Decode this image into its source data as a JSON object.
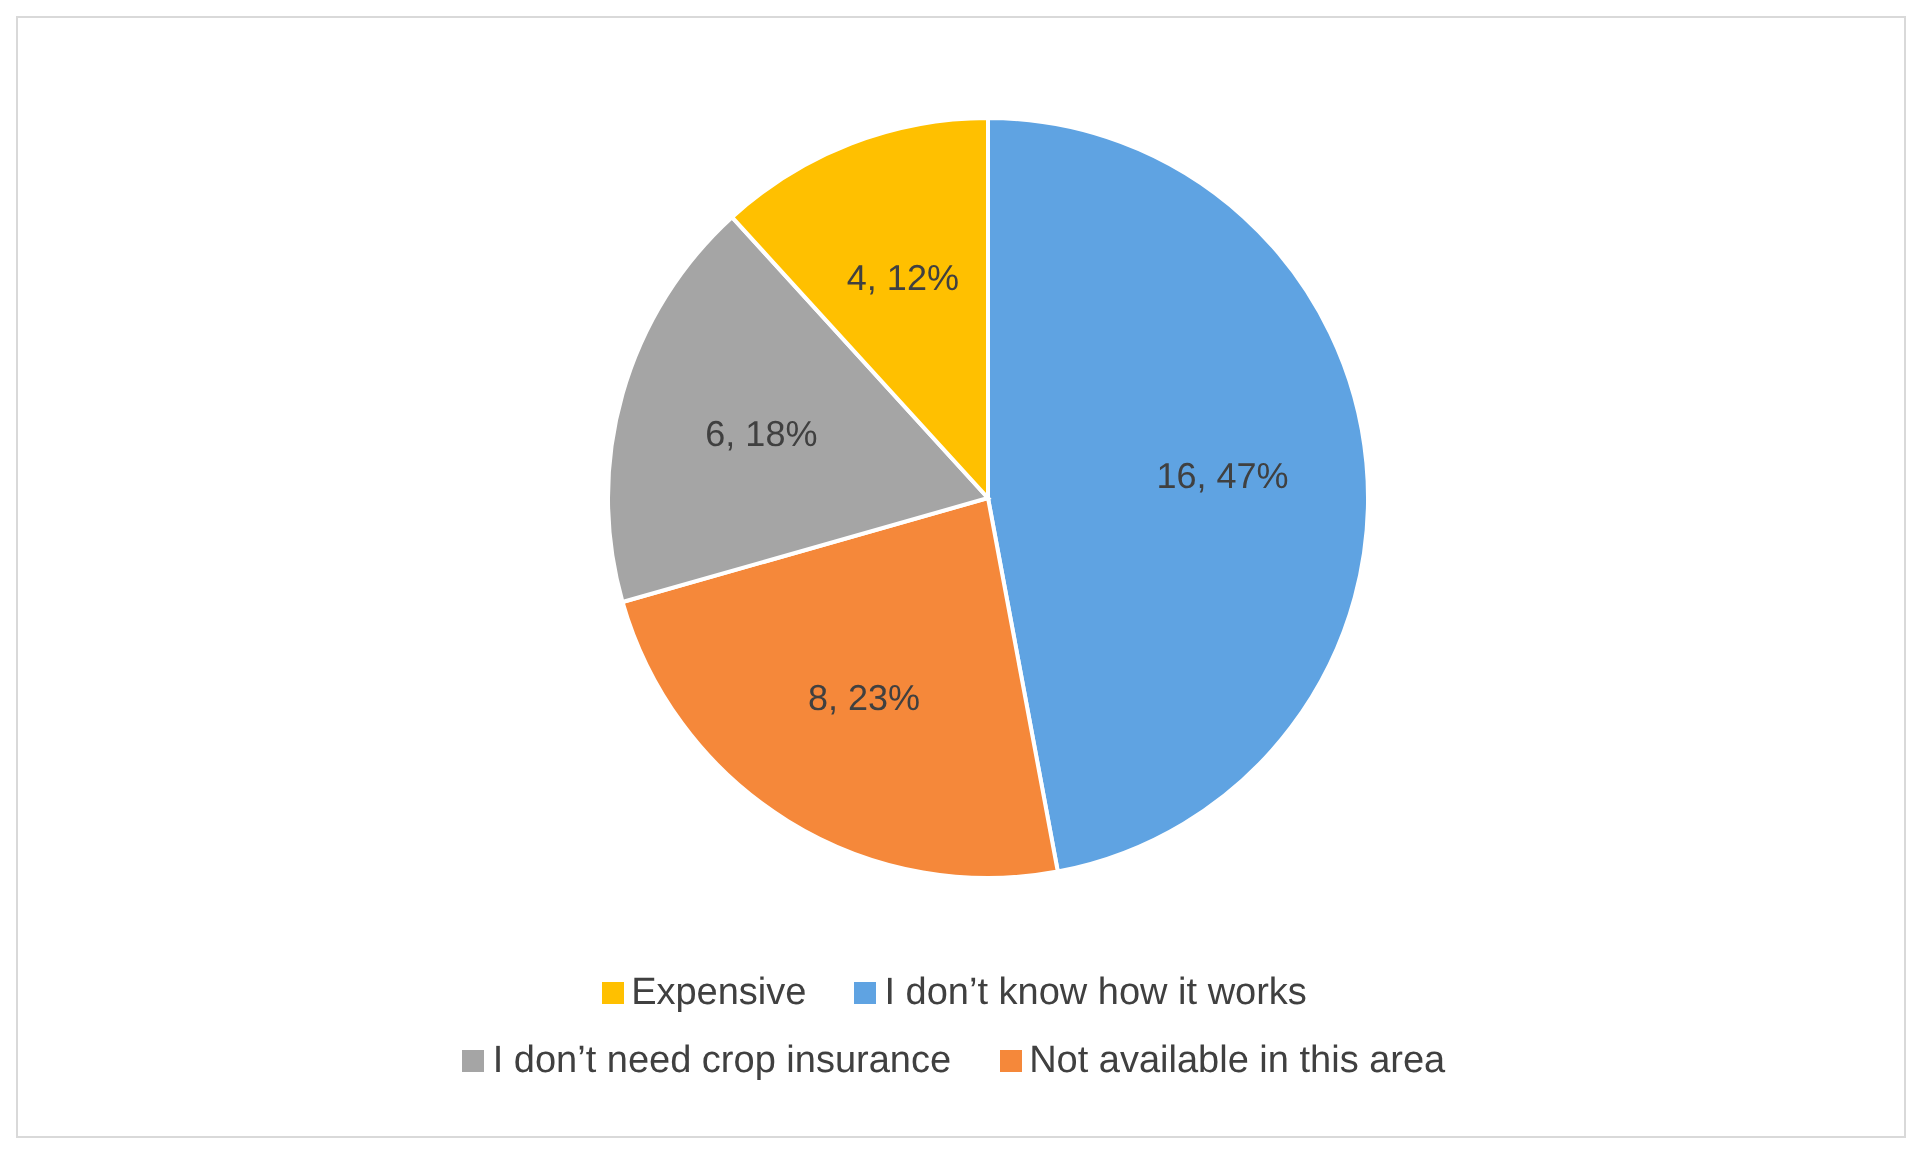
{
  "chart_data": {
    "type": "pie",
    "categories": [
      "I don’t know how it works",
      "Not available in this area",
      "I don’t need crop insurance",
      "Expensive"
    ],
    "values": [
      16,
      8,
      6,
      4
    ],
    "colors": [
      "#5fa3e2",
      "#f5883a",
      "#a5a5a5",
      "#ffc000"
    ],
    "value_labels": [
      "16, 47%",
      "8, 23%",
      "6, 18%",
      "4, 12%"
    ],
    "legend": "bottom"
  }
}
